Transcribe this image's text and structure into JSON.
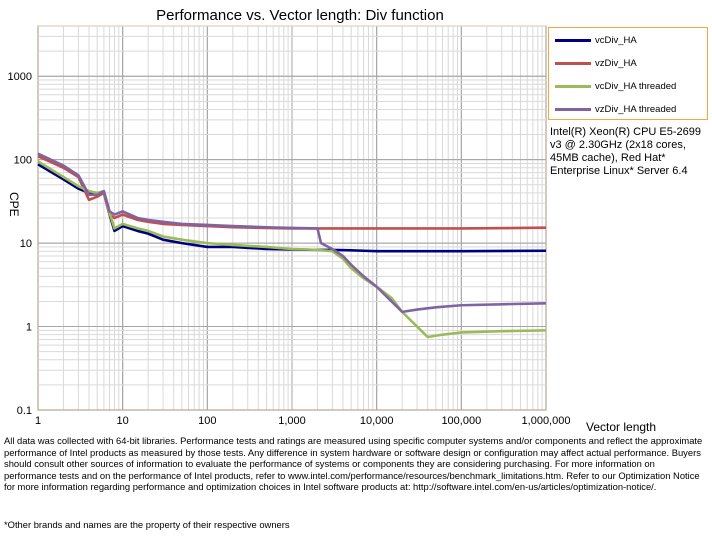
{
  "chart_data": {
    "type": "line",
    "title": "Performance vs. Vector length: Div function",
    "xlabel": "Vector length",
    "ylabel": "CPE",
    "x_scale": "log",
    "y_scale": "log",
    "xlim": [
      1,
      1000000
    ],
    "ylim": [
      0.1,
      4000
    ],
    "x_ticks": [
      "1",
      "10",
      "100",
      "1,000",
      "10,000",
      "100,000",
      "1,000,000"
    ],
    "y_ticks": [
      "0.1",
      "1",
      "10",
      "100",
      "1000"
    ],
    "grid": true,
    "legend_position": "right",
    "series": [
      {
        "name": "vcDiv_HA",
        "color": "#00007f",
        "x": [
          1,
          2,
          3,
          4,
          5,
          6,
          7,
          8,
          10,
          15,
          20,
          30,
          50,
          100,
          200,
          500,
          1000,
          2000,
          3000,
          5000,
          7000,
          10000,
          20000,
          50000,
          100000,
          1000000
        ],
        "y": [
          88,
          58,
          45,
          40,
          40,
          40,
          22,
          14,
          16,
          14,
          13,
          11,
          10,
          9,
          9,
          8.5,
          8.4,
          8.3,
          8.3,
          8.2,
          8.1,
          8.0,
          8.0,
          8.0,
          8.0,
          8.1
        ]
      },
      {
        "name": "vzDiv_HA",
        "color": "#c0504d",
        "x": [
          1,
          2,
          3,
          4,
          5,
          6,
          7,
          8,
          10,
          15,
          20,
          30,
          50,
          100,
          200,
          500,
          1000,
          2000,
          3000,
          5000,
          7000,
          10000,
          20000,
          50000,
          100000,
          1000000
        ],
        "y": [
          110,
          80,
          62,
          33,
          36,
          40,
          22,
          20,
          22,
          19,
          18,
          17,
          16.5,
          16,
          15.5,
          15.2,
          15,
          15,
          15,
          15,
          15,
          15,
          15,
          15,
          15,
          15.3
        ]
      },
      {
        "name": "vcDiv_HA threaded",
        "color": "#9bbb59",
        "x": [
          1,
          2,
          3,
          4,
          5,
          6,
          7,
          8,
          10,
          15,
          20,
          30,
          50,
          100,
          200,
          500,
          1000,
          2000,
          3000,
          4000,
          5000,
          7000,
          10000,
          15000,
          20000,
          30000,
          40000,
          60000,
          100000,
          300000,
          1000000
        ],
        "y": [
          95,
          62,
          48,
          42,
          40,
          42,
          23,
          15,
          17,
          15,
          14,
          12,
          11,
          10,
          9.5,
          9,
          8.5,
          8.3,
          8,
          6.5,
          5,
          3.8,
          3,
          2.2,
          1.5,
          1.0,
          0.75,
          0.8,
          0.85,
          0.88,
          0.9
        ]
      },
      {
        "name": "vzDiv_HA threaded",
        "color": "#8064a2",
        "x": [
          1,
          2,
          3,
          4,
          5,
          6,
          7,
          8,
          10,
          15,
          20,
          30,
          50,
          100,
          200,
          500,
          1000,
          2000,
          2200,
          3000,
          4000,
          5000,
          7000,
          10000,
          15000,
          20000,
          30000,
          50000,
          100000,
          300000,
          1000000
        ],
        "y": [
          118,
          85,
          65,
          38,
          38,
          42,
          24,
          22,
          24,
          20,
          19,
          18,
          17,
          16.5,
          16,
          15.5,
          15.2,
          15,
          10,
          8.5,
          7,
          5.5,
          4,
          3,
          2,
          1.5,
          1.6,
          1.7,
          1.8,
          1.85,
          1.9
        ]
      }
    ]
  },
  "annotations": {
    "system_info": "Intel(R) Xeon(R) CPU E5-2699 v3 @ 2.30GHz (2x18 cores, 45MB cache), Red Hat* Enterprise Linux* Server 6.4",
    "disclaimer": "All data was collected with 64-bit libraries. Performance tests and ratings are measured using specific computer systems and/or components and reflect the approximate performance of Intel products as measured by those tests. Any difference in system hardware or software design or configuration may affect actual performance. Buyers should consult other sources of information to evaluate the performance of systems or components they are considering purchasing. For more information on performance tests and on the performance of Intel products, refer to www.intel.com/performance/resources/benchmark_limitations.htm. Refer to our Optimization Notice for more information regarding performance and optimization choices in Intel software products at: http://software.intel.com/en-us/articles/optimization-notice/.",
    "trademark": "*Other brands and names are the property of their respective owners"
  }
}
